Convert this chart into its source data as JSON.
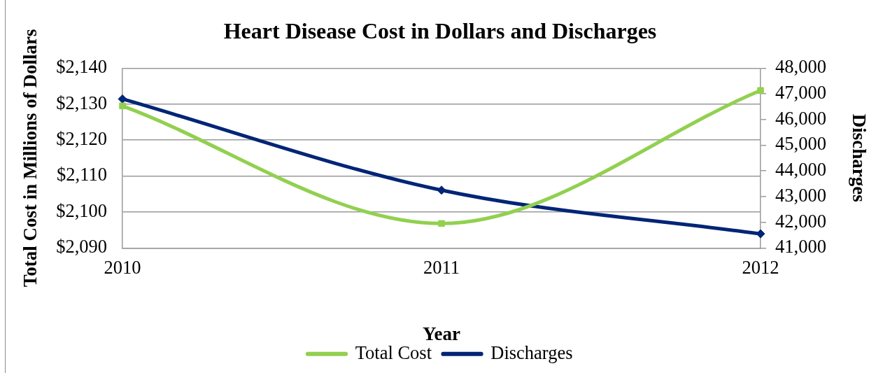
{
  "chart_data": {
    "type": "line",
    "title": "Heart Disease Cost in Dollars and Discharges",
    "xlabel": "Year",
    "ylabel": "Total Cost in Millions of Dollars",
    "y2label": "Discharges",
    "categories": [
      "2010",
      "2011",
      "2012"
    ],
    "series": [
      {
        "name": "Total Cost",
        "color": "#92d050",
        "values": [
          2129.5,
          2096.8,
          2133.8
        ],
        "marker": "square"
      },
      {
        "name": "Discharges",
        "color": "#002576",
        "values": [
          46800,
          43250,
          41550
        ],
        "axis": "y2",
        "marker": "diamond"
      }
    ],
    "ylim": [
      2090,
      2140
    ],
    "yticks": [
      {
        "value": 2090,
        "label": "$2,090"
      },
      {
        "value": 2100,
        "label": "$2,100"
      },
      {
        "value": 2110,
        "label": "$2,110"
      },
      {
        "value": 2120,
        "label": "$2,120"
      },
      {
        "value": 2130,
        "label": "$2,130"
      },
      {
        "value": 2140,
        "label": "$2,140"
      }
    ],
    "y2lim": [
      41000,
      48000
    ],
    "y2ticks": [
      {
        "value": 41000,
        "label": "41,000"
      },
      {
        "value": 42000,
        "label": "42,000"
      },
      {
        "value": 43000,
        "label": "43,000"
      },
      {
        "value": 44000,
        "label": "44,000"
      },
      {
        "value": 45000,
        "label": "45,000"
      },
      {
        "value": 46000,
        "label": "46,000"
      },
      {
        "value": 47000,
        "label": "47,000"
      },
      {
        "value": 48000,
        "label": "48,000"
      }
    ],
    "grid": "y",
    "legend": "bottom"
  }
}
